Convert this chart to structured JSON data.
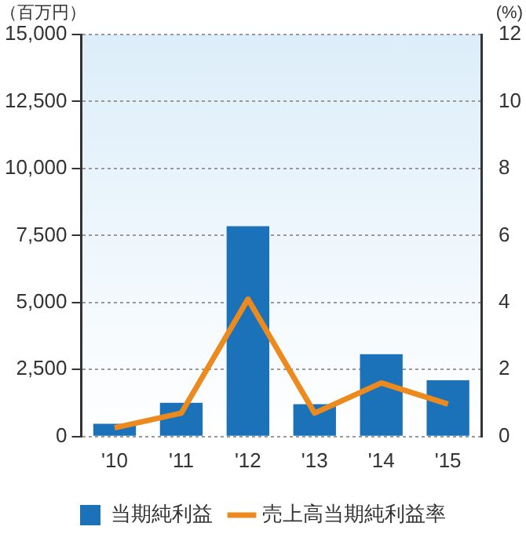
{
  "chart_data": {
    "type": "bar",
    "ylabel": "（百万円）",
    "y2label": "(%)",
    "categories": [
      "'10",
      "'11",
      "'12",
      "'13",
      "'14",
      "'15"
    ],
    "series": [
      {
        "name": "当期純利益",
        "color": "#1b72b8",
        "values": [
          480,
          1260,
          7850,
          1210,
          3070,
          2100
        ]
      },
      {
        "name": "売上高当期純利益率",
        "type": "line",
        "axis": "y2",
        "color": "#ec8a1e",
        "values": [
          0.26,
          0.7,
          4.1,
          0.7,
          1.6,
          0.97
        ]
      }
    ],
    "ylim": [
      0,
      15000
    ],
    "yticks": [
      {
        "value": 0,
        "label": "0"
      },
      {
        "value": 2500,
        "label": "2,500"
      },
      {
        "value": 5000,
        "label": "5,000"
      },
      {
        "value": 7500,
        "label": "7,500"
      },
      {
        "value": 10000,
        "label": "10,000"
      },
      {
        "value": 12500,
        "label": "12,500"
      },
      {
        "value": 15000,
        "label": "15,000"
      }
    ],
    "y2lim": [
      0,
      12
    ],
    "y2ticks": [
      0,
      2,
      4,
      6,
      8,
      10,
      12
    ],
    "grid": "y",
    "legend": "bottom",
    "marker": "none",
    "line_style": "solid"
  }
}
